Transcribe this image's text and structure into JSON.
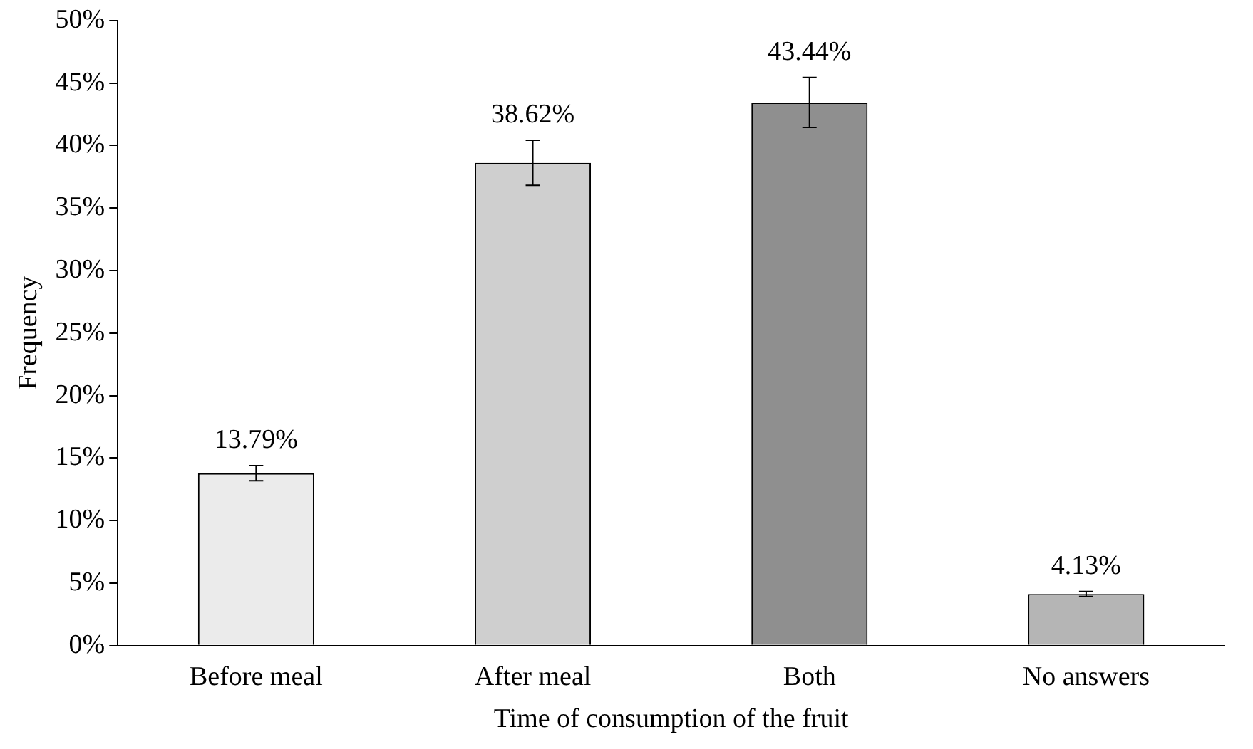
{
  "chart_data": {
    "type": "bar",
    "xlabel": "Time of consumption of the fruit",
    "ylabel": "Frequency",
    "categories": [
      "Before meal",
      "After meal",
      "Both",
      "No answers"
    ],
    "values": [
      13.79,
      38.62,
      43.44,
      4.13
    ],
    "colors": [
      "#ebebeb",
      "#cfcfcf",
      "#8f8f8f",
      "#b5b5b5"
    ],
    "errors": [
      0.6,
      1.8,
      2.0,
      0.2
    ],
    "value_labels": [
      "13.79%",
      "38.62%",
      "43.44%",
      "4.13%"
    ],
    "ylim": [
      0,
      50
    ],
    "yticks": [
      {
        "value": 0,
        "label": "0%"
      },
      {
        "value": 5,
        "label": "5%"
      },
      {
        "value": 10,
        "label": "10%"
      },
      {
        "value": 15,
        "label": "15%"
      },
      {
        "value": 20,
        "label": "20%"
      },
      {
        "value": 25,
        "label": "25%"
      },
      {
        "value": 30,
        "label": "30%"
      },
      {
        "value": 35,
        "label": "35%"
      },
      {
        "value": 40,
        "label": "40%"
      },
      {
        "value": 45,
        "label": "45%"
      },
      {
        "value": 50,
        "label": "50%"
      }
    ],
    "grid": false,
    "legend": false
  }
}
